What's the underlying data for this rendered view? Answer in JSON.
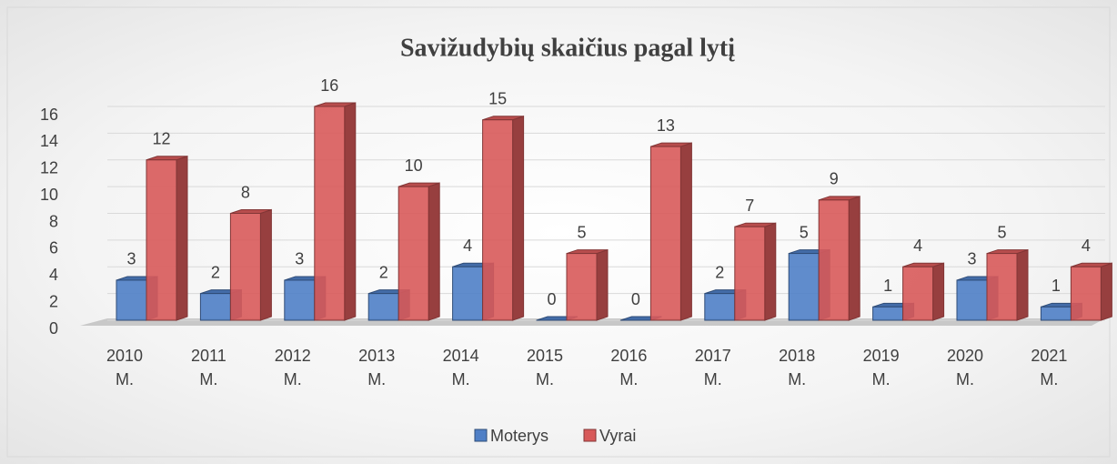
{
  "chart_data": {
    "type": "bar3d",
    "title": "Savižudybių skaičius pagal lytį",
    "categories": [
      "2010 M.",
      "2011 M.",
      "2012 M.",
      "2013 M.",
      "2014 M.",
      "2015 M.",
      "2016 M.",
      "2017 M.",
      "2018 M.",
      "2019 M.",
      "2020 M.",
      "2021 M."
    ],
    "series": [
      {
        "name": "Moterys",
        "color": "#4f7fc6",
        "values": [
          3,
          2,
          3,
          2,
          4,
          0,
          0,
          2,
          5,
          1,
          3,
          1
        ]
      },
      {
        "name": "Vyrai",
        "color": "#d85a5a",
        "values": [
          12,
          8,
          16,
          10,
          15,
          5,
          13,
          7,
          9,
          4,
          5,
          4
        ]
      }
    ],
    "ylim": [
      0,
      16
    ],
    "yticks": [
      0,
      2,
      4,
      6,
      8,
      10,
      12,
      14,
      16
    ],
    "grid": true,
    "legend": "bottom"
  }
}
